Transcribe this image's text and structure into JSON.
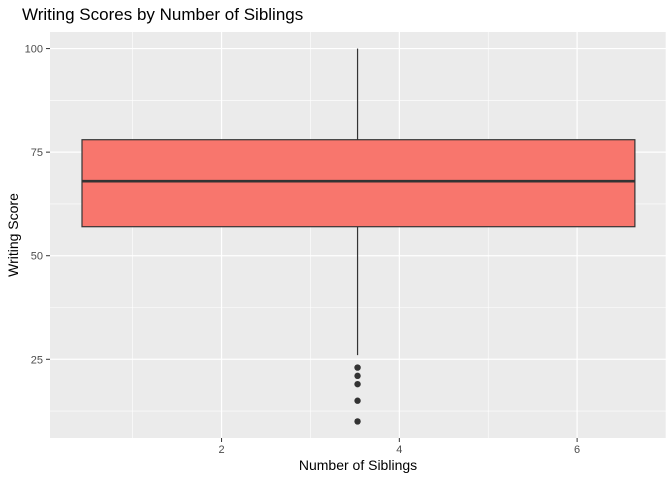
{
  "chart_data": {
    "type": "boxplot",
    "title": "Writing Scores by Number of Siblings",
    "xlabel": "Number of Siblings",
    "ylabel": "Writing Score",
    "xlim": [
      0.07,
      7.0
    ],
    "ylim": [
      6.0,
      104.0
    ],
    "x_ticks": [
      2,
      4,
      6
    ],
    "y_ticks": [
      25,
      50,
      75,
      100
    ],
    "grid": true,
    "box": {
      "x_center": 3.53,
      "x_min": 0.43,
      "x_max": 6.65,
      "q1": 57,
      "median": 68,
      "q3": 78,
      "whisker_low": 26,
      "whisker_high": 100,
      "outliers": [
        23,
        21,
        19,
        15,
        10
      ]
    },
    "colors": {
      "panel": "#ebebeb",
      "grid": "#ffffff",
      "box_fill": "#f8766d",
      "box_line": "#333333"
    }
  }
}
